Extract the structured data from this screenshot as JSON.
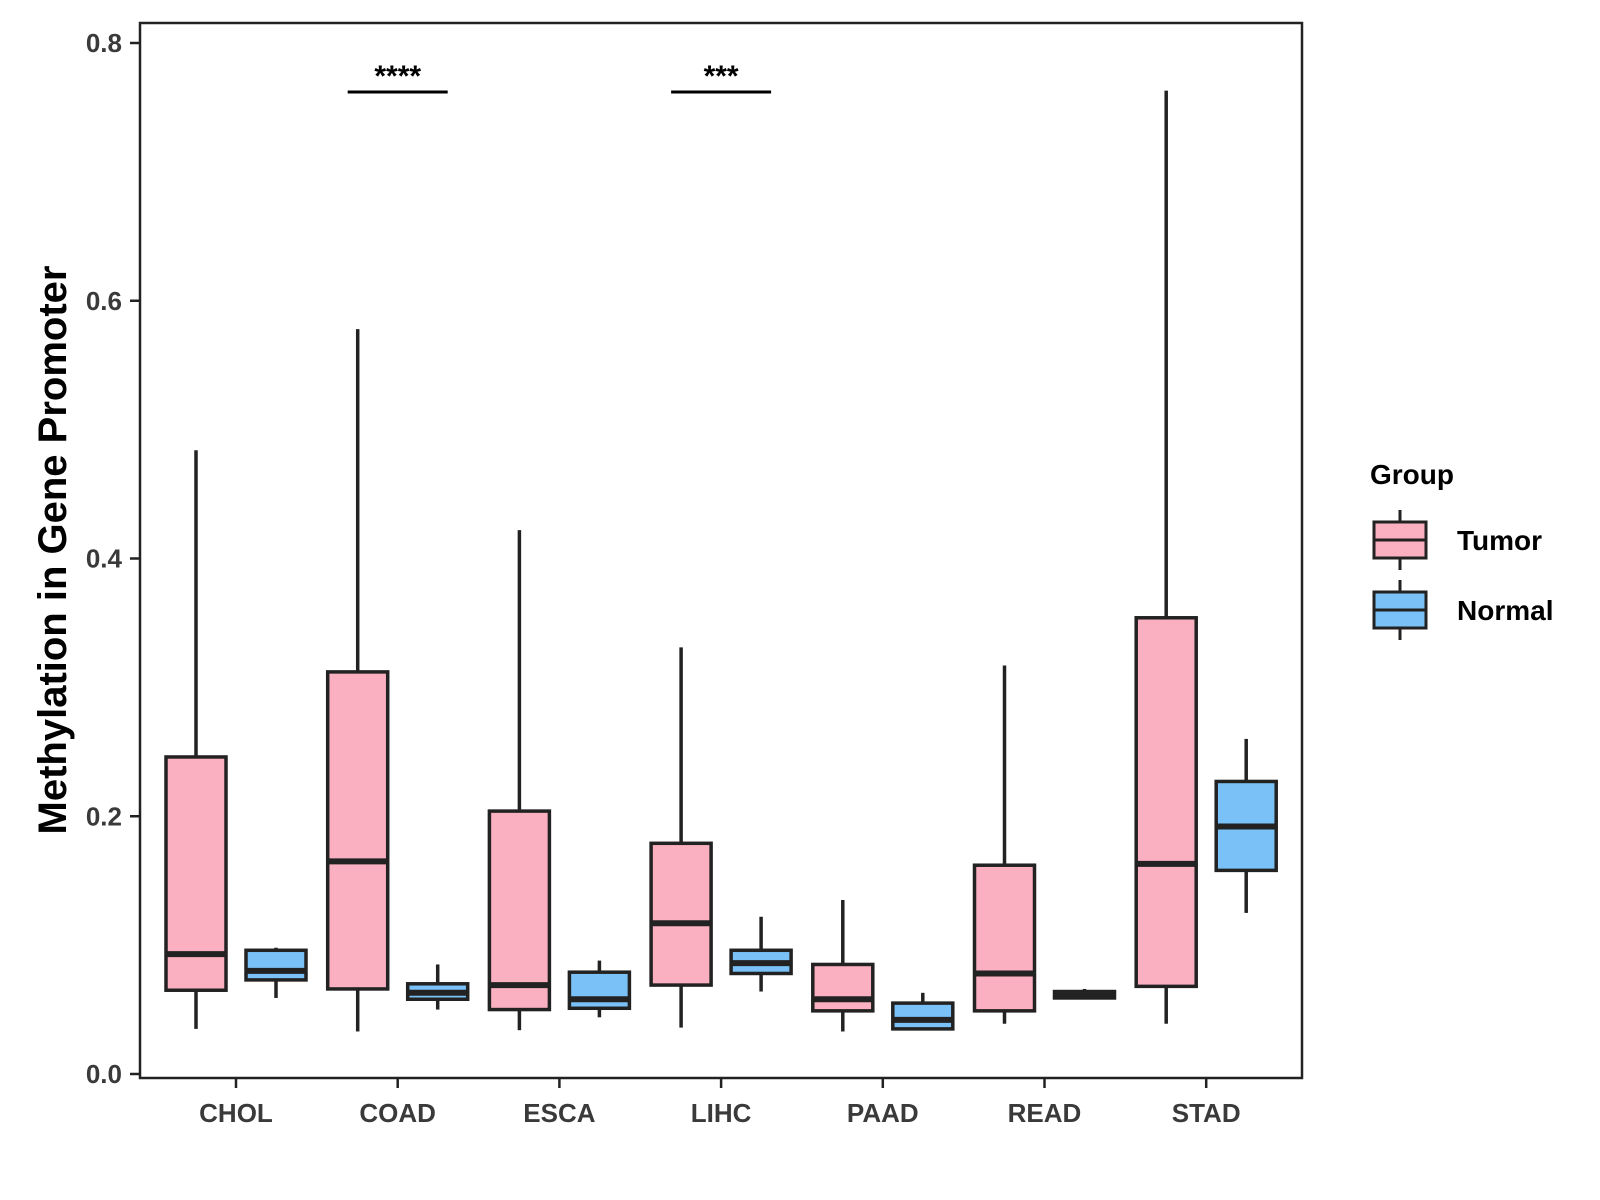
{
  "chart_data": {
    "type": "boxplot",
    "title": "",
    "xlabel": "",
    "ylabel": "Methylation in Gene Promoter",
    "ylim": [
      0.0,
      0.8
    ],
    "yticks": [
      0.0,
      0.2,
      0.4,
      0.6,
      0.8
    ],
    "ytick_labels": [
      "0.0",
      "0.2",
      "0.4",
      "0.6",
      "0.8"
    ],
    "grid": false,
    "categories": [
      "CHOL",
      "COAD",
      "ESCA",
      "LIHC",
      "PAAD",
      "READ",
      "STAD"
    ],
    "legend": {
      "title": "Group",
      "position": "right",
      "entries": [
        {
          "name": "Tumor",
          "color": "#fbb0c2"
        },
        {
          "name": "Normal",
          "color": "#79c1f7"
        }
      ]
    },
    "series": [
      {
        "name": "Tumor",
        "color": "#fbb0c2",
        "boxes": [
          {
            "category": "CHOL",
            "min": 0.035,
            "q1": 0.065,
            "median": 0.093,
            "q3": 0.246,
            "max": 0.484
          },
          {
            "category": "COAD",
            "min": 0.033,
            "q1": 0.066,
            "median": 0.165,
            "q3": 0.312,
            "max": 0.578
          },
          {
            "category": "ESCA",
            "min": 0.034,
            "q1": 0.05,
            "median": 0.069,
            "q3": 0.204,
            "max": 0.422
          },
          {
            "category": "LIHC",
            "min": 0.036,
            "q1": 0.069,
            "median": 0.117,
            "q3": 0.179,
            "max": 0.331
          },
          {
            "category": "PAAD",
            "min": 0.033,
            "q1": 0.049,
            "median": 0.058,
            "q3": 0.085,
            "max": 0.135
          },
          {
            "category": "READ",
            "min": 0.039,
            "q1": 0.049,
            "median": 0.078,
            "q3": 0.162,
            "max": 0.317
          },
          {
            "category": "STAD",
            "min": 0.039,
            "q1": 0.068,
            "median": 0.163,
            "q3": 0.354,
            "max": 0.763
          }
        ]
      },
      {
        "name": "Normal",
        "color": "#79c1f7",
        "boxes": [
          {
            "category": "CHOL",
            "min": 0.059,
            "q1": 0.073,
            "median": 0.08,
            "q3": 0.096,
            "max": 0.098
          },
          {
            "category": "COAD",
            "min": 0.05,
            "q1": 0.058,
            "median": 0.063,
            "q3": 0.07,
            "max": 0.085
          },
          {
            "category": "ESCA",
            "min": 0.044,
            "q1": 0.051,
            "median": 0.058,
            "q3": 0.079,
            "max": 0.088
          },
          {
            "category": "LIHC",
            "min": 0.064,
            "q1": 0.078,
            "median": 0.086,
            "q3": 0.096,
            "max": 0.122
          },
          {
            "category": "PAAD",
            "min": 0.034,
            "q1": 0.035,
            "median": 0.042,
            "q3": 0.055,
            "max": 0.063
          },
          {
            "category": "READ",
            "min": 0.058,
            "q1": 0.059,
            "median": 0.062,
            "q3": 0.064,
            "max": 0.066
          },
          {
            "category": "STAD",
            "min": 0.125,
            "q1": 0.158,
            "median": 0.192,
            "q3": 0.227,
            "max": 0.26
          }
        ]
      }
    ],
    "annotations": [
      {
        "category": "COAD",
        "label": "****",
        "y": 0.762
      },
      {
        "category": "LIHC",
        "label": "***",
        "y": 0.762
      }
    ]
  }
}
